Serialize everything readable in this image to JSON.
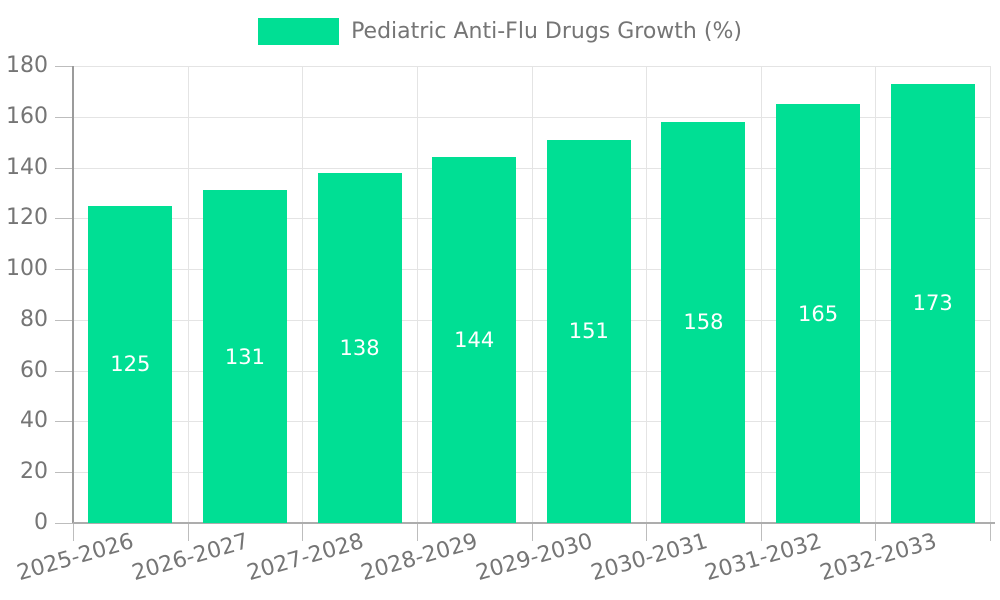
{
  "chart_data": {
    "type": "bar",
    "title": "Pediatric Anti-Flu Drugs Growth (%)",
    "categories": [
      "2025-2026",
      "2026-2027",
      "2027-2028",
      "2028-2029",
      "2029-2030",
      "2030-2031",
      "2031-2032",
      "2032-2033"
    ],
    "values": [
      125,
      131,
      138,
      144,
      151,
      158,
      165,
      173
    ],
    "xlabel": "",
    "ylabel": "",
    "ylim": [
      0,
      180
    ],
    "ytick_step": 20,
    "yticks": [
      0,
      20,
      40,
      60,
      80,
      100,
      120,
      140,
      160,
      180
    ],
    "grid": true,
    "legend_position": "top-center",
    "value_labels_inside_bars": true,
    "colors": {
      "bar": "#00DF94",
      "value_label_text": "#FFFFFF",
      "axis_text": "#757575",
      "axis_line": "#A3A3A3",
      "tick_line": "#BDBDBD",
      "grid_line": "#E4E4E4"
    }
  },
  "legend": {
    "series_label": "Pediatric Anti-Flu Drugs Growth (%)",
    "swatch_color": "#00DF94"
  }
}
